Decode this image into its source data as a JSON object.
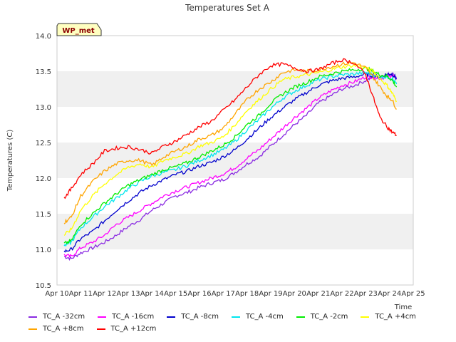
{
  "badge": "WP_met",
  "chart_data": {
    "type": "line",
    "title": "Temperatures Set A",
    "xlabel": "Time",
    "ylabel": "Temperatures (C)",
    "ylim": [
      10.5,
      14.0
    ],
    "y_ticks": [
      "10.5",
      "11.0",
      "11.5",
      "12.0",
      "12.5",
      "13.0",
      "13.5",
      "14.0"
    ],
    "x_ticks": [
      "Apr 10",
      "Apr 11",
      "Apr 12",
      "Apr 13",
      "Apr 14",
      "Apr 15",
      "Apr 16",
      "Apr 17",
      "Apr 18",
      "Apr 19",
      "Apr 20",
      "Apr 21",
      "Apr 22",
      "Apr 23",
      "Apr 24",
      "Apr 25"
    ],
    "x_range_days": [
      10,
      25
    ],
    "grid": "alternating horizontal bands",
    "legend_placement": "bottom",
    "series": [
      {
        "name": "TC_A -32cm",
        "color": "#8a2be2",
        "x": [
          10.3,
          10.6,
          11,
          11.5,
          12,
          12.5,
          13,
          13.5,
          14,
          14.5,
          15,
          15.5,
          16,
          16.5,
          17,
          17.5,
          18,
          18.5,
          19,
          19.5,
          20,
          20.5,
          21,
          21.5,
          22,
          22.5,
          23,
          23.3,
          23.6,
          23.9,
          24.1,
          24.3
        ],
        "y": [
          10.9,
          10.87,
          10.95,
          11.02,
          11.1,
          11.2,
          11.32,
          11.42,
          11.55,
          11.65,
          11.75,
          11.8,
          11.87,
          11.93,
          11.98,
          12.08,
          12.2,
          12.3,
          12.45,
          12.6,
          12.75,
          12.88,
          13.05,
          13.15,
          13.25,
          13.3,
          13.37,
          13.42,
          13.42,
          13.45,
          13.47,
          13.42
        ]
      },
      {
        "name": "TC_A -16cm",
        "color": "#ff00ff",
        "x": [
          10.3,
          10.6,
          11,
          11.5,
          12,
          12.5,
          13,
          13.5,
          14,
          14.5,
          15,
          15.5,
          16,
          16.5,
          17,
          17.5,
          18,
          18.5,
          19,
          19.5,
          20,
          20.5,
          21,
          21.5,
          22,
          22.5,
          23,
          23.3,
          23.6,
          23.9,
          24.1,
          24.3
        ],
        "y": [
          10.92,
          10.9,
          11.02,
          11.1,
          11.2,
          11.35,
          11.45,
          11.55,
          11.65,
          11.75,
          11.82,
          11.88,
          11.94,
          12.0,
          12.06,
          12.15,
          12.28,
          12.4,
          12.55,
          12.7,
          12.85,
          12.98,
          13.12,
          13.22,
          13.3,
          13.35,
          13.42,
          13.42,
          13.4,
          13.43,
          13.44,
          13.4
        ]
      },
      {
        "name": "TC_A -8cm",
        "color": "#0000cd",
        "x": [
          10.3,
          10.6,
          11,
          11.5,
          12,
          12.5,
          13,
          13.5,
          14,
          14.5,
          15,
          15.5,
          16,
          16.5,
          17,
          17.5,
          18,
          18.5,
          19,
          19.5,
          20,
          20.5,
          21,
          21.5,
          22,
          22.5,
          23,
          23.3,
          23.6,
          23.9,
          24.1,
          24.3
        ],
        "y": [
          10.97,
          11.0,
          11.15,
          11.25,
          11.4,
          11.55,
          11.68,
          11.8,
          11.9,
          11.98,
          12.05,
          12.1,
          12.17,
          12.22,
          12.3,
          12.4,
          12.55,
          12.7,
          12.85,
          12.98,
          13.1,
          13.2,
          13.3,
          13.36,
          13.4,
          13.42,
          13.46,
          13.44,
          13.42,
          13.46,
          13.46,
          13.4
        ]
      },
      {
        "name": "TC_A -4cm",
        "color": "#00e5ee",
        "x": [
          10.3,
          10.6,
          11,
          11.5,
          12,
          12.5,
          13,
          13.5,
          14,
          14.5,
          15,
          15.5,
          16,
          16.5,
          17,
          17.5,
          18,
          18.5,
          19,
          19.5,
          20,
          20.5,
          21,
          21.5,
          22,
          22.5,
          23,
          23.3,
          23.6,
          23.9,
          24.1,
          24.3
        ],
        "y": [
          11.05,
          11.1,
          11.3,
          11.45,
          11.6,
          11.72,
          11.85,
          11.95,
          12.03,
          12.08,
          12.12,
          12.18,
          12.25,
          12.32,
          12.4,
          12.52,
          12.68,
          12.82,
          12.98,
          13.12,
          13.22,
          13.3,
          13.38,
          13.42,
          13.45,
          13.46,
          13.48,
          13.45,
          13.42,
          13.42,
          13.4,
          13.32
        ]
      },
      {
        "name": "TC_A -2cm",
        "color": "#00ee00",
        "x": [
          10.3,
          10.6,
          11,
          11.5,
          12,
          12.5,
          13,
          13.5,
          14,
          14.5,
          15,
          15.5,
          16,
          16.5,
          17,
          17.5,
          18,
          18.5,
          19,
          19.5,
          20,
          20.5,
          21,
          21.5,
          22,
          22.5,
          23,
          23.3,
          23.6,
          23.9,
          24.1,
          24.3
        ],
        "y": [
          11.08,
          11.12,
          11.35,
          11.5,
          11.65,
          11.78,
          11.9,
          11.98,
          12.05,
          12.12,
          12.16,
          12.22,
          12.3,
          12.38,
          12.46,
          12.58,
          12.75,
          12.88,
          13.05,
          13.18,
          13.28,
          13.34,
          13.42,
          13.46,
          13.5,
          13.52,
          13.54,
          13.5,
          13.45,
          13.43,
          13.38,
          13.28
        ]
      },
      {
        "name": "TC_A +4cm",
        "color": "#ffff00",
        "x": [
          10.3,
          10.6,
          11,
          11.5,
          12,
          12.5,
          13,
          13.5,
          14,
          14.5,
          15,
          15.5,
          16,
          16.5,
          17,
          17.5,
          18,
          18.5,
          19,
          19.5,
          20,
          20.5,
          21,
          21.5,
          22,
          22.5,
          23,
          23.3,
          23.6,
          23.9,
          24.1,
          24.3
        ],
        "y": [
          11.2,
          11.28,
          11.55,
          11.75,
          11.92,
          12.05,
          12.15,
          12.2,
          12.15,
          12.25,
          12.3,
          12.35,
          12.45,
          12.5,
          12.58,
          12.75,
          12.95,
          13.1,
          13.25,
          13.38,
          13.42,
          13.45,
          13.48,
          13.52,
          13.56,
          13.58,
          13.55,
          13.5,
          13.4,
          13.3,
          13.2,
          13.08
        ]
      },
      {
        "name": "TC_A +8cm",
        "color": "#ffa500",
        "x": [
          10.3,
          10.6,
          11,
          11.5,
          12,
          12.5,
          13,
          13.5,
          14,
          14.5,
          15,
          15.5,
          16,
          16.5,
          17,
          17.5,
          18,
          18.5,
          19,
          19.5,
          20,
          20.5,
          21,
          21.5,
          22,
          22.5,
          23,
          23.3,
          23.6,
          23.9,
          24.1,
          24.3
        ],
        "y": [
          11.38,
          11.45,
          11.75,
          11.95,
          12.1,
          12.2,
          12.25,
          12.25,
          12.18,
          12.3,
          12.38,
          12.45,
          12.55,
          12.6,
          12.7,
          12.9,
          13.1,
          13.25,
          13.35,
          13.48,
          13.52,
          13.5,
          13.52,
          13.56,
          13.6,
          13.62,
          13.55,
          13.42,
          13.28,
          13.15,
          13.1,
          12.97
        ]
      },
      {
        "name": "TC_A +12cm",
        "color": "#ff0000",
        "x": [
          10.3,
          10.6,
          11,
          11.5,
          12,
          12.5,
          13,
          13.5,
          14,
          14.5,
          15,
          15.5,
          16,
          16.5,
          17,
          17.5,
          18,
          18.5,
          19,
          19.5,
          20,
          20.5,
          21,
          21.5,
          22,
          22.5,
          23,
          23.3,
          23.6,
          23.9,
          24.1,
          24.3
        ],
        "y": [
          11.72,
          11.85,
          12.05,
          12.2,
          12.38,
          12.42,
          12.44,
          12.4,
          12.35,
          12.45,
          12.52,
          12.62,
          12.72,
          12.8,
          12.95,
          13.1,
          13.28,
          13.45,
          13.58,
          13.6,
          13.55,
          13.5,
          13.52,
          13.6,
          13.66,
          13.62,
          13.45,
          13.15,
          12.85,
          12.72,
          12.65,
          12.6
        ]
      }
    ]
  }
}
